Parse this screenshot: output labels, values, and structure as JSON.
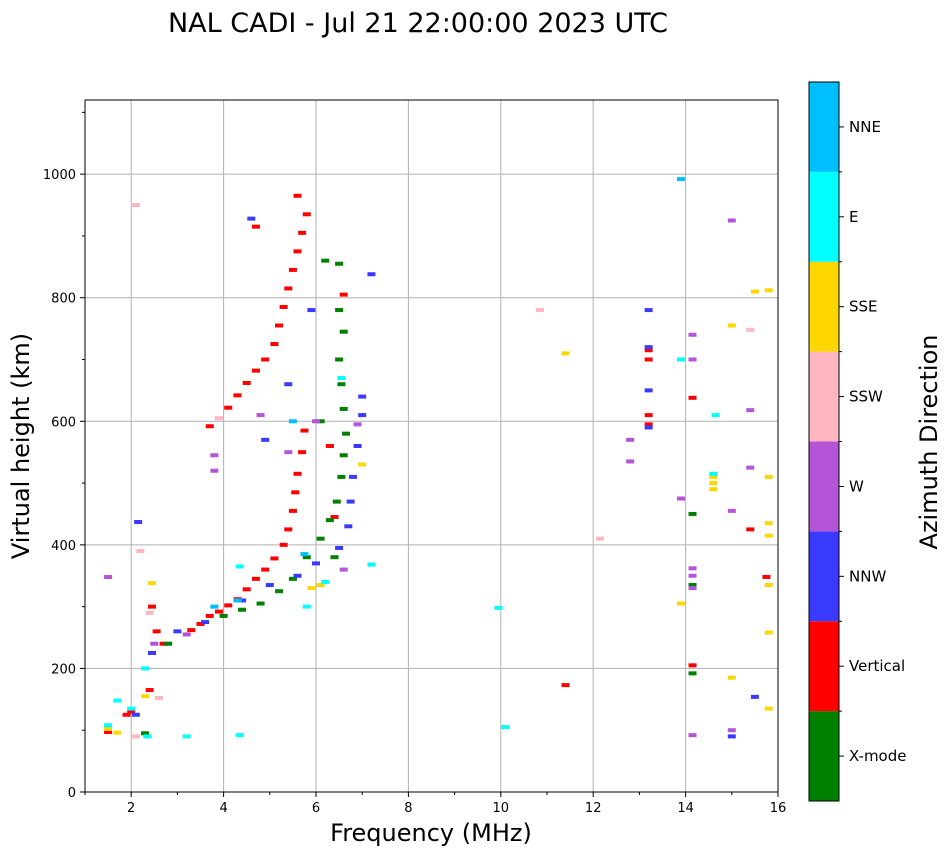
{
  "chart_data": {
    "type": "scatter",
    "title": "NAL CADI - Jul 21 22:00:00 2023 UTC",
    "xlabel": "Frequency (MHz)",
    "ylabel": "Virtual height (km)",
    "xlim": [
      1,
      16
    ],
    "ylim": [
      0,
      1120
    ],
    "x_ticks": [
      2,
      4,
      6,
      8,
      10,
      12,
      14,
      16
    ],
    "y_ticks": [
      0,
      200,
      400,
      600,
      800,
      1000
    ],
    "grid": true,
    "colorbar": {
      "label": "Azimuth Direction",
      "categories": [
        "X-mode",
        "Vertical",
        "NNW",
        "W",
        "SSW",
        "SSE",
        "E",
        "NNE"
      ],
      "colors": [
        "#008000",
        "#ff0000",
        "#3a3aff",
        "#b455d8",
        "#ffb6c1",
        "#ffd700",
        "#00ffff",
        "#00bfff"
      ]
    },
    "series": [
      {
        "name": "Vertical",
        "points": [
          [
            1.5,
            97
          ],
          [
            2.4,
            165
          ],
          [
            2.45,
            300
          ],
          [
            2.55,
            260
          ],
          [
            2.7,
            240
          ],
          [
            3.3,
            262
          ],
          [
            3.5,
            272
          ],
          [
            3.7,
            285
          ],
          [
            3.9,
            292
          ],
          [
            4.1,
            302
          ],
          [
            4.3,
            312
          ],
          [
            4.5,
            328
          ],
          [
            4.7,
            345
          ],
          [
            4.9,
            360
          ],
          [
            5.1,
            378
          ],
          [
            5.3,
            400
          ],
          [
            5.4,
            425
          ],
          [
            5.5,
            455
          ],
          [
            5.55,
            485
          ],
          [
            5.6,
            515
          ],
          [
            5.7,
            550
          ],
          [
            5.75,
            585
          ],
          [
            4.1,
            622
          ],
          [
            4.3,
            642
          ],
          [
            4.5,
            662
          ],
          [
            4.7,
            682
          ],
          [
            4.9,
            700
          ],
          [
            5.1,
            725
          ],
          [
            5.2,
            755
          ],
          [
            5.3,
            785
          ],
          [
            5.4,
            815
          ],
          [
            5.5,
            845
          ],
          [
            5.6,
            875
          ],
          [
            5.7,
            905
          ],
          [
            5.8,
            935
          ],
          [
            5.6,
            965
          ],
          [
            4.7,
            915
          ],
          [
            6.6,
            805
          ],
          [
            6.3,
            560
          ],
          [
            6.4,
            445
          ],
          [
            3.7,
            592
          ],
          [
            11.4,
            173
          ],
          [
            13.2,
            715
          ],
          [
            13.2,
            700
          ],
          [
            13.2,
            610
          ],
          [
            13.2,
            595
          ],
          [
            14.15,
            205
          ],
          [
            14.15,
            638
          ],
          [
            15.4,
            425
          ],
          [
            15.75,
            348
          ],
          [
            2.0,
            130
          ],
          [
            1.9,
            125
          ]
        ]
      },
      {
        "name": "X-mode",
        "points": [
          [
            2.8,
            240
          ],
          [
            4.0,
            285
          ],
          [
            4.4,
            295
          ],
          [
            4.8,
            305
          ],
          [
            5.2,
            325
          ],
          [
            5.5,
            345
          ],
          [
            5.8,
            380
          ],
          [
            6.1,
            410
          ],
          [
            6.3,
            440
          ],
          [
            6.45,
            470
          ],
          [
            6.55,
            510
          ],
          [
            6.6,
            545
          ],
          [
            6.65,
            580
          ],
          [
            6.6,
            620
          ],
          [
            6.55,
            660
          ],
          [
            6.5,
            700
          ],
          [
            6.6,
            745
          ],
          [
            6.5,
            780
          ],
          [
            6.2,
            860
          ],
          [
            6.5,
            855
          ],
          [
            6.4,
            380
          ],
          [
            6.1,
            600
          ],
          [
            14.15,
            192
          ],
          [
            14.15,
            335
          ],
          [
            14.15,
            450
          ],
          [
            2.3,
            95
          ]
        ]
      },
      {
        "name": "NNW",
        "points": [
          [
            2.45,
            225
          ],
          [
            3.0,
            260
          ],
          [
            3.6,
            275
          ],
          [
            4.4,
            310
          ],
          [
            5.0,
            335
          ],
          [
            5.6,
            350
          ],
          [
            6.0,
            370
          ],
          [
            6.5,
            395
          ],
          [
            6.7,
            430
          ],
          [
            6.75,
            470
          ],
          [
            6.8,
            510
          ],
          [
            6.9,
            560
          ],
          [
            7.0,
            610
          ],
          [
            7.0,
            640
          ],
          [
            5.9,
            780
          ],
          [
            5.4,
            660
          ],
          [
            4.9,
            570
          ],
          [
            4.6,
            928
          ],
          [
            7.2,
            838
          ],
          [
            2.15,
            437
          ],
          [
            13.2,
            780
          ],
          [
            13.2,
            720
          ],
          [
            13.2,
            650
          ],
          [
            13.2,
            590
          ],
          [
            15.0,
            90
          ],
          [
            15.5,
            154
          ],
          [
            2.1,
            125
          ]
        ]
      },
      {
        "name": "W",
        "points": [
          [
            2.5,
            240
          ],
          [
            3.2,
            255
          ],
          [
            3.8,
            520
          ],
          [
            3.8,
            545
          ],
          [
            4.8,
            610
          ],
          [
            5.4,
            550
          ],
          [
            6.0,
            600
          ],
          [
            6.6,
            360
          ],
          [
            6.9,
            595
          ],
          [
            12.8,
            570
          ],
          [
            12.8,
            535
          ],
          [
            13.9,
            475
          ],
          [
            14.15,
            740
          ],
          [
            14.15,
            700
          ],
          [
            14.15,
            362
          ],
          [
            14.15,
            350
          ],
          [
            14.15,
            330
          ],
          [
            14.15,
            92
          ],
          [
            15.0,
            925
          ],
          [
            15.0,
            455
          ],
          [
            15.4,
            618
          ],
          [
            15.4,
            525
          ],
          [
            15.0,
            100
          ],
          [
            1.5,
            348
          ]
        ]
      },
      {
        "name": "SSW",
        "points": [
          [
            2.2,
            390
          ],
          [
            2.4,
            290
          ],
          [
            2.6,
            152
          ],
          [
            3.9,
            605
          ],
          [
            10.85,
            780
          ],
          [
            12.15,
            410
          ],
          [
            15.4,
            748
          ],
          [
            2.1,
            90
          ],
          [
            2.1,
            950
          ]
        ]
      },
      {
        "name": "SSE",
        "points": [
          [
            1.5,
            102
          ],
          [
            1.7,
            96
          ],
          [
            2.3,
            155
          ],
          [
            2.45,
            338
          ],
          [
            5.9,
            330
          ],
          [
            6.1,
            335
          ],
          [
            7.0,
            530
          ],
          [
            11.4,
            710
          ],
          [
            13.9,
            305
          ],
          [
            14.6,
            510
          ],
          [
            14.6,
            500
          ],
          [
            14.6,
            490
          ],
          [
            15.0,
            755
          ],
          [
            15.0,
            185
          ],
          [
            15.5,
            810
          ],
          [
            15.8,
            812
          ],
          [
            15.8,
            510
          ],
          [
            15.8,
            435
          ],
          [
            15.8,
            415
          ],
          [
            15.8,
            335
          ],
          [
            15.8,
            258
          ],
          [
            15.8,
            135
          ]
        ]
      },
      {
        "name": "E",
        "points": [
          [
            1.5,
            108
          ],
          [
            1.7,
            148
          ],
          [
            2.0,
            135
          ],
          [
            2.3,
            200
          ],
          [
            2.35,
            90
          ],
          [
            3.2,
            90
          ],
          [
            4.35,
            365
          ],
          [
            4.35,
            92
          ],
          [
            5.8,
            300
          ],
          [
            6.2,
            340
          ],
          [
            6.55,
            670
          ],
          [
            7.2,
            368
          ],
          [
            9.95,
            298
          ],
          [
            10.1,
            105
          ],
          [
            13.9,
            700
          ],
          [
            14.65,
            610
          ],
          [
            14.6,
            515
          ]
        ]
      },
      {
        "name": "NNE",
        "points": [
          [
            3.8,
            300
          ],
          [
            4.3,
            310
          ],
          [
            5.5,
            600
          ],
          [
            5.75,
            385
          ],
          [
            13.9,
            992
          ]
        ]
      }
    ]
  }
}
